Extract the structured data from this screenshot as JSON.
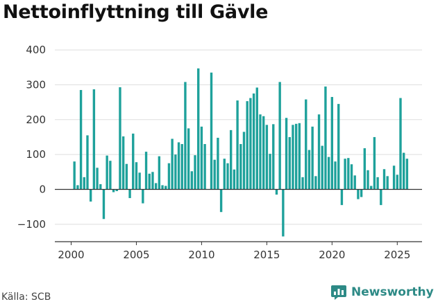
{
  "title": "Nettoinflyttning till Gävle",
  "source": "Källa: SCB",
  "brand": "Newsworthy",
  "colors": {
    "bar": "#1ea19b",
    "grid": "#dddddd",
    "zero": "#333333",
    "axis": "#333333",
    "brand": "#2d8a86"
  },
  "chart_data": {
    "type": "bar",
    "title": "Nettoinflyttning till Gävle",
    "xlabel": "",
    "ylabel": "",
    "x_start": 2000.25,
    "x_step": 0.25,
    "xlim": [
      1998.75,
      2026.9
    ],
    "ylim": [
      -150,
      420
    ],
    "yticks": [
      -100,
      0,
      100,
      200,
      300,
      400
    ],
    "ytick_labels": [
      "−100",
      "0",
      "100",
      "200",
      "300",
      "400"
    ],
    "xticks": [
      2000,
      2005,
      2010,
      2015,
      2020,
      2025
    ],
    "xtick_labels": [
      "2000",
      "2005",
      "2010",
      "2015",
      "2020",
      "2025"
    ],
    "grid": true,
    "values": [
      80,
      12,
      285,
      35,
      155,
      -35,
      287,
      62,
      15,
      -85,
      97,
      82,
      -8,
      -5,
      293,
      152,
      73,
      -25,
      160,
      78,
      48,
      -40,
      108,
      45,
      50,
      18,
      95,
      12,
      10,
      75,
      145,
      100,
      135,
      130,
      308,
      175,
      52,
      98,
      347,
      180,
      130,
      0,
      335,
      85,
      148,
      -65,
      88,
      75,
      170,
      57,
      255,
      130,
      165,
      253,
      262,
      275,
      292,
      215,
      210,
      185,
      102,
      187,
      -15,
      308,
      -135,
      205,
      150,
      185,
      188,
      190,
      35,
      258,
      113,
      180,
      38,
      215,
      125,
      295,
      93,
      265,
      80,
      245,
      -45,
      88,
      90,
      72,
      40,
      -28,
      -22,
      118,
      55,
      10,
      150,
      35,
      -45,
      58,
      38,
      0,
      68,
      42,
      262,
      105,
      88
    ]
  }
}
